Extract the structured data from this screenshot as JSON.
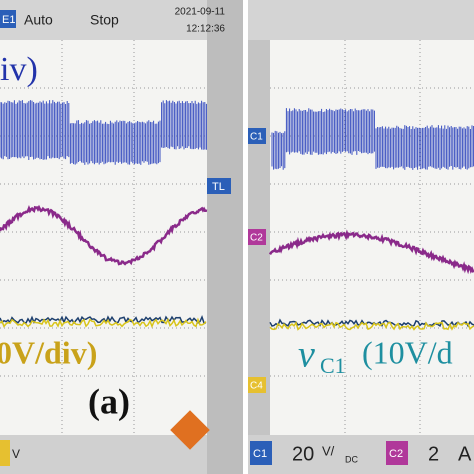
{
  "left_screen": {
    "channel_tag": "E1",
    "mode": "Auto",
    "state": "Stop",
    "date": "2021-09-11",
    "time": "12:12:36",
    "scale_top": "iv)",
    "trigger_tag": "TL",
    "scale_bottom": "0V/div)",
    "panel_label": "(a)",
    "footer_unit": "V"
  },
  "right_screen": {
    "markers": [
      "C1",
      "C2",
      "C4"
    ],
    "label_symbol": "v",
    "label_subscript": "C1",
    "label_scale": "(10V/d",
    "footer": {
      "c1_tag": "C1",
      "c1_value": "20",
      "c1_unit": "V/",
      "c1_coupling": "DC",
      "c2_tag": "C2",
      "c2_value": "2",
      "c2_unit": "A"
    }
  }
}
